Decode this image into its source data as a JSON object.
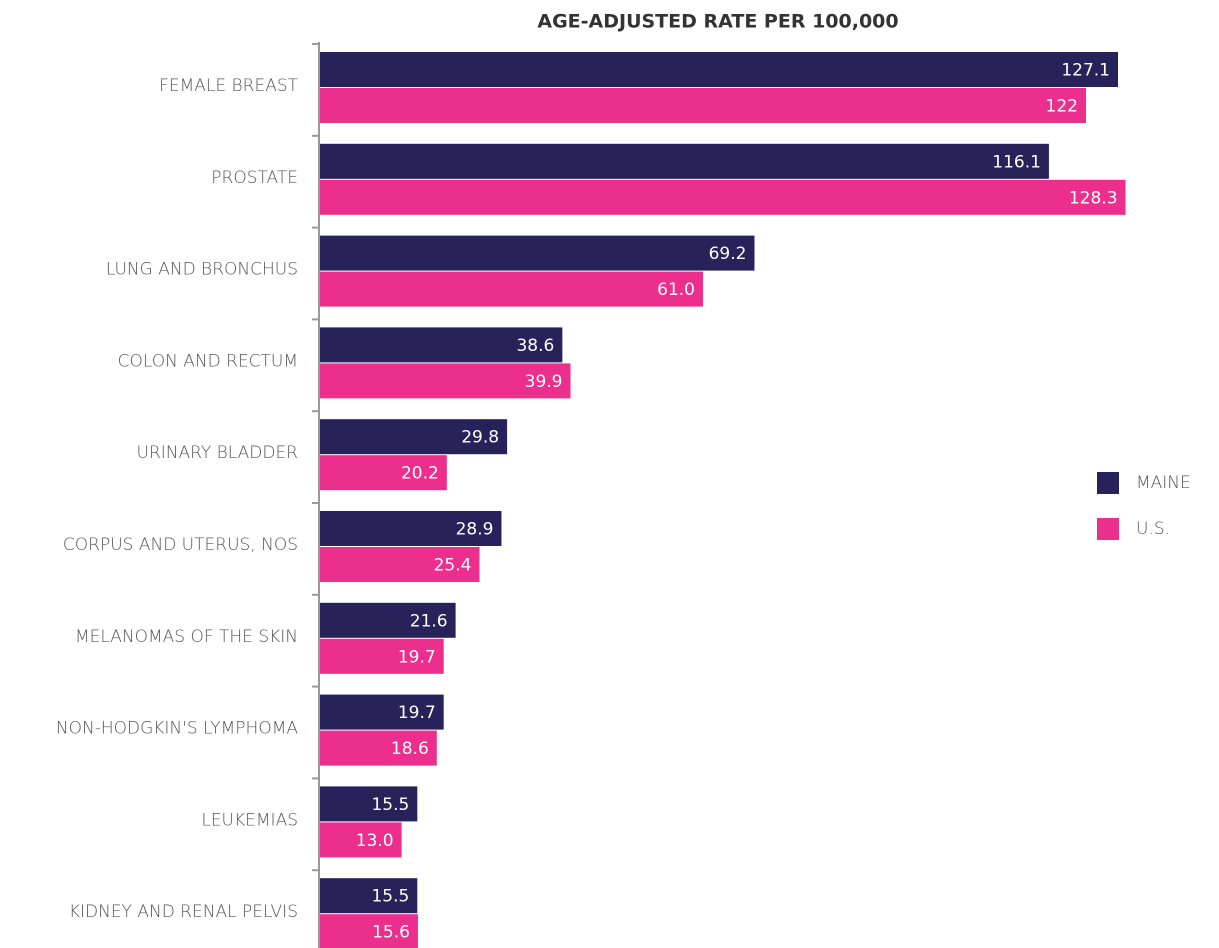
{
  "chart_data": {
    "type": "bar",
    "orientation": "horizontal",
    "title": "AGE-ADJUSTED RATE PER 100,000",
    "categories": [
      "FEMALE BREAST",
      "PROSTATE",
      "LUNG AND BRONCHUS",
      "COLON AND RECTUM",
      "URINARY BLADDER",
      "CORPUS AND UTERUS, NOS",
      "MELANOMAS OF THE SKIN",
      "NON-HODGKIN'S LYMPHOMA",
      "LEUKEMIAS",
      "KIDNEY AND RENAL PELVIS"
    ],
    "series": [
      {
        "name": "MAINE",
        "color": "#27235a",
        "values": [
          127.1,
          116.1,
          69.2,
          38.6,
          29.8,
          28.9,
          21.6,
          19.7,
          15.5,
          15.5
        ],
        "value_labels": [
          "127.1",
          "116.1",
          "69.2",
          "38.6",
          "29.8",
          "28.9",
          "21.6",
          "19.7",
          "15.5",
          "15.5"
        ]
      },
      {
        "name": "U.S.",
        "color": "#ec2f8c",
        "values": [
          122,
          128.3,
          61.0,
          39.9,
          20.2,
          25.4,
          19.7,
          18.6,
          13.0,
          15.6
        ],
        "value_labels": [
          "122",
          "128.3",
          "61.0",
          "39.9",
          "20.2",
          "25.4",
          "19.7",
          "18.6",
          "13.0",
          "15.6"
        ]
      }
    ],
    "xlim": [
      0,
      140
    ],
    "legend": "right"
  }
}
